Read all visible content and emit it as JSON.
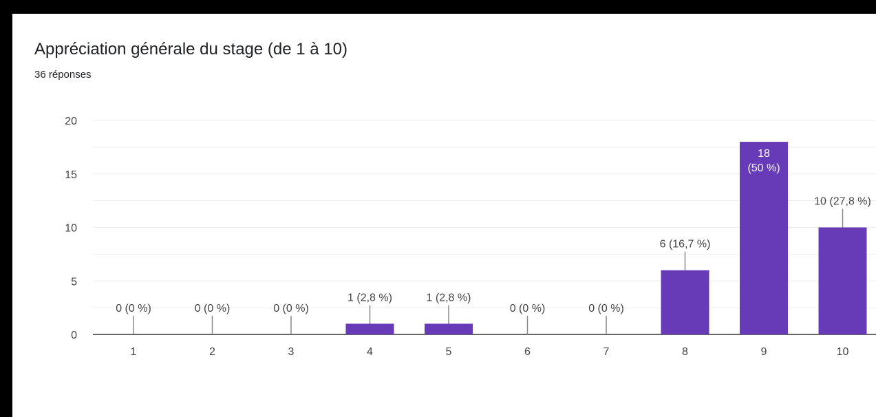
{
  "question": {
    "title": "Appréciation générale du stage (de 1 à 10)",
    "responses": "36 réponses"
  },
  "colors": {
    "bar": "#673ab7",
    "axis": "#333333",
    "grid": "#eeeeee",
    "label": "#444444",
    "inner_label": "#ffffff"
  },
  "chart_data": {
    "type": "bar",
    "title": "Appréciation générale du stage (de 1 à 10)",
    "xlabel": "",
    "ylabel": "",
    "categories": [
      "1",
      "2",
      "3",
      "4",
      "5",
      "6",
      "7",
      "8",
      "9",
      "10"
    ],
    "values": [
      0,
      0,
      0,
      1,
      1,
      0,
      0,
      6,
      18,
      10
    ],
    "data_labels": [
      "0 (0 %)",
      "0 (0 %)",
      "0 (0 %)",
      "1 (2,8 %)",
      "1 (2,8 %)",
      "0 (0 %)",
      "0 (0 %)",
      "6 (16,7 %)",
      "18\n(50 %)",
      "10 (27,8 %)"
    ],
    "ylim": [
      0,
      20
    ],
    "yticks": [
      0,
      5,
      10,
      15,
      20
    ],
    "grid": true,
    "legend": "none"
  }
}
